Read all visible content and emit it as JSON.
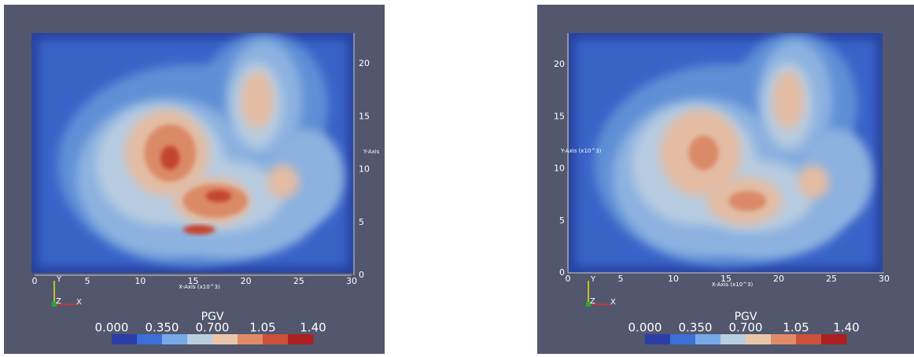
{
  "panels": [
    {
      "x_axis": {
        "title": "X-Axis (x10^3)",
        "ticks": [
          "0",
          "5",
          "10",
          "15",
          "20",
          "25",
          "30"
        ]
      },
      "y_axis": {
        "title": "Y-Axis",
        "ticks": [
          "0",
          "5",
          "10",
          "15",
          "20"
        ]
      },
      "orientation": {
        "y": "Y",
        "z": "Z",
        "x": "X"
      },
      "colorbar": {
        "title": "PGV",
        "labels": [
          "0.000",
          "0.350",
          "0.700",
          "1.05",
          "1.40"
        ],
        "colors": [
          "#2b3ea8",
          "#3c6fd8",
          "#78aaea",
          "#b9cfe2",
          "#ebc7aa",
          "#e28b69",
          "#cb513b",
          "#ab2020"
        ]
      }
    },
    {
      "x_axis": {
        "title": "X-Axis (x10^3)",
        "ticks": [
          "0",
          "5",
          "10",
          "15",
          "20",
          "25",
          "30"
        ]
      },
      "y_axis": {
        "title": "Y-Axis (x10^3)",
        "ticks": [
          "0",
          "5",
          "10",
          "15",
          "20"
        ]
      },
      "orientation": {
        "y": "Y",
        "z": "Z",
        "x": "X"
      },
      "colorbar": {
        "title": "PGV",
        "labels": [
          "0.000",
          "0.350",
          "0.700",
          "1.05",
          "1.40"
        ],
        "colors": [
          "#2b3ea8",
          "#3c6fd8",
          "#78aaea",
          "#b9cfe2",
          "#ebc7aa",
          "#e28b69",
          "#cb513b",
          "#ab2020"
        ]
      }
    }
  ]
}
